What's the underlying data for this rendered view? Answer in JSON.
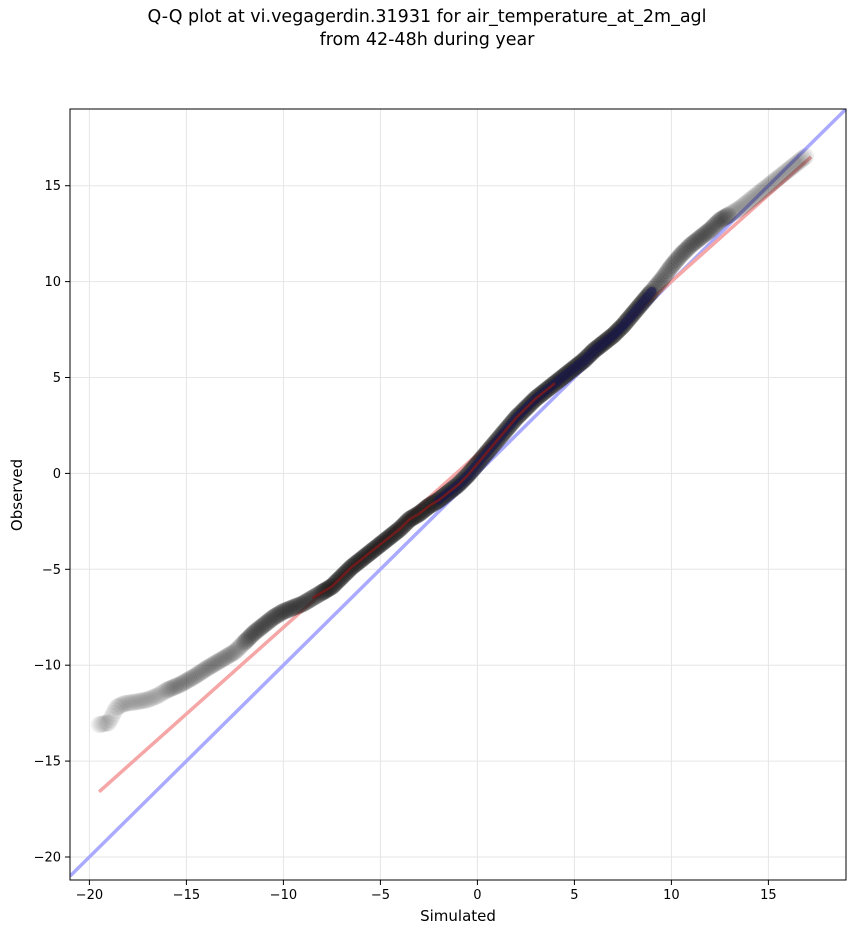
{
  "chart_data": {
    "type": "scatter",
    "title_line1": "Q-Q plot at vi.vegagerdin.31931 for air_temperature_at_2m_agl",
    "title_line2": "from 42-48h during year",
    "xlabel": "Simulated",
    "ylabel": "Observed",
    "xlim": [
      -21,
      19
    ],
    "ylim": [
      -21.2,
      19
    ],
    "xticks": [
      -20,
      -15,
      -10,
      -5,
      0,
      5,
      10,
      15
    ],
    "yticks": [
      -20,
      -15,
      -10,
      -5,
      0,
      5,
      10,
      15
    ],
    "xtick_labels": [
      "−20",
      "−15",
      "−10",
      "−5",
      "0",
      "5",
      "10",
      "15"
    ],
    "ytick_labels": [
      "−20",
      "−15",
      "−10",
      "−5",
      "0",
      "5",
      "10",
      "15"
    ],
    "grid": true,
    "quantiles": [
      [
        -19.5,
        -13.1
      ],
      [
        -19.0,
        -13.0
      ],
      [
        -18.6,
        -12.2
      ],
      [
        -18.2,
        -12.0
      ],
      [
        -17.5,
        -11.9
      ],
      [
        -17.0,
        -11.8
      ],
      [
        -16.5,
        -11.6
      ],
      [
        -16.0,
        -11.3
      ],
      [
        -15.3,
        -11.0
      ],
      [
        -14.6,
        -10.6
      ],
      [
        -14.0,
        -10.2
      ],
      [
        -13.5,
        -9.9
      ],
      [
        -13.0,
        -9.6
      ],
      [
        -12.5,
        -9.3
      ],
      [
        -12.0,
        -8.8
      ],
      [
        -11.5,
        -8.3
      ],
      [
        -11.0,
        -7.9
      ],
      [
        -10.5,
        -7.5
      ],
      [
        -10.0,
        -7.2
      ],
      [
        -9.5,
        -7.0
      ],
      [
        -9.0,
        -6.8
      ],
      [
        -8.5,
        -6.5
      ],
      [
        -8.0,
        -6.2
      ],
      [
        -7.5,
        -5.9
      ],
      [
        -7.0,
        -5.4
      ],
      [
        -6.5,
        -4.9
      ],
      [
        -6.0,
        -4.5
      ],
      [
        -5.5,
        -4.1
      ],
      [
        -5.0,
        -3.7
      ],
      [
        -4.5,
        -3.3
      ],
      [
        -4.0,
        -2.9
      ],
      [
        -3.5,
        -2.4
      ],
      [
        -3.0,
        -2.1
      ],
      [
        -2.5,
        -1.7
      ],
      [
        -2.0,
        -1.4
      ],
      [
        -1.5,
        -1.0
      ],
      [
        -1.0,
        -0.6
      ],
      [
        -0.5,
        -0.1
      ],
      [
        0.0,
        0.5
      ],
      [
        0.5,
        1.1
      ],
      [
        1.0,
        1.7
      ],
      [
        1.5,
        2.3
      ],
      [
        2.0,
        2.9
      ],
      [
        2.5,
        3.4
      ],
      [
        3.0,
        3.9
      ],
      [
        3.5,
        4.3
      ],
      [
        4.0,
        4.7
      ],
      [
        4.5,
        5.1
      ],
      [
        5.0,
        5.5
      ],
      [
        5.5,
        5.9
      ],
      [
        6.0,
        6.4
      ],
      [
        6.5,
        6.8
      ],
      [
        7.0,
        7.2
      ],
      [
        7.5,
        7.7
      ],
      [
        8.0,
        8.3
      ],
      [
        8.5,
        8.9
      ],
      [
        9.0,
        9.5
      ],
      [
        9.5,
        10.1
      ],
      [
        10.0,
        10.8
      ],
      [
        10.5,
        11.4
      ],
      [
        11.0,
        11.9
      ],
      [
        11.5,
        12.3
      ],
      [
        12.0,
        12.7
      ],
      [
        12.5,
        13.2
      ],
      [
        13.0,
        13.5
      ],
      [
        13.5,
        13.8
      ],
      [
        14.0,
        14.2
      ],
      [
        14.5,
        14.6
      ],
      [
        15.0,
        15.0
      ],
      [
        15.5,
        15.4
      ],
      [
        16.0,
        15.8
      ],
      [
        16.5,
        16.2
      ],
      [
        17.0,
        16.6
      ]
    ],
    "reference_line": {
      "color": "#aaaaff",
      "from": [
        -21,
        -21
      ],
      "to": [
        19,
        19
      ]
    },
    "fit_line": {
      "color": "#f5a6a6",
      "from": [
        -19.5,
        -16.6
      ],
      "to": [
        17.2,
        16.5
      ]
    },
    "highlight": {
      "from_x": -8.5,
      "to_x": 9.0,
      "dark_red_until_x": 4.0,
      "navy_from_x": -2.0
    }
  }
}
